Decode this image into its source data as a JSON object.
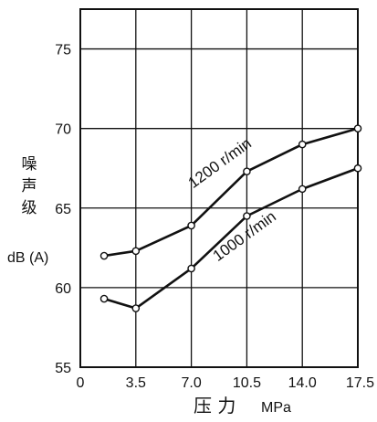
{
  "chart_data": {
    "type": "line",
    "xlabel": "压  力",
    "xunit": "MPa",
    "ylabel": [
      "噪",
      "声",
      "级"
    ],
    "yunit": "dB (A)",
    "xlim": [
      0,
      17.5
    ],
    "ylim": [
      55,
      77.5
    ],
    "xticks": [
      "0",
      "3.5",
      "7.0",
      "10.5",
      "14.0",
      "17.5"
    ],
    "xtick_values": [
      0,
      3.5,
      7.0,
      10.5,
      14.0,
      17.5
    ],
    "yticks": [
      "55",
      "60",
      "65",
      "70",
      "75"
    ],
    "ytick_values": [
      55,
      60,
      65,
      70,
      75
    ],
    "grid": true,
    "series": [
      {
        "name": "1200 r/min",
        "x": [
          1.5,
          3.5,
          7.0,
          10.5,
          14.0,
          17.5
        ],
        "y": [
          62.0,
          62.3,
          63.9,
          67.3,
          69.0,
          70.0
        ]
      },
      {
        "name": "1000 r/min",
        "x": [
          1.5,
          3.5,
          7.0,
          10.5,
          14.0,
          17.5
        ],
        "y": [
          59.3,
          58.7,
          61.2,
          64.5,
          66.2,
          67.5
        ]
      }
    ]
  }
}
